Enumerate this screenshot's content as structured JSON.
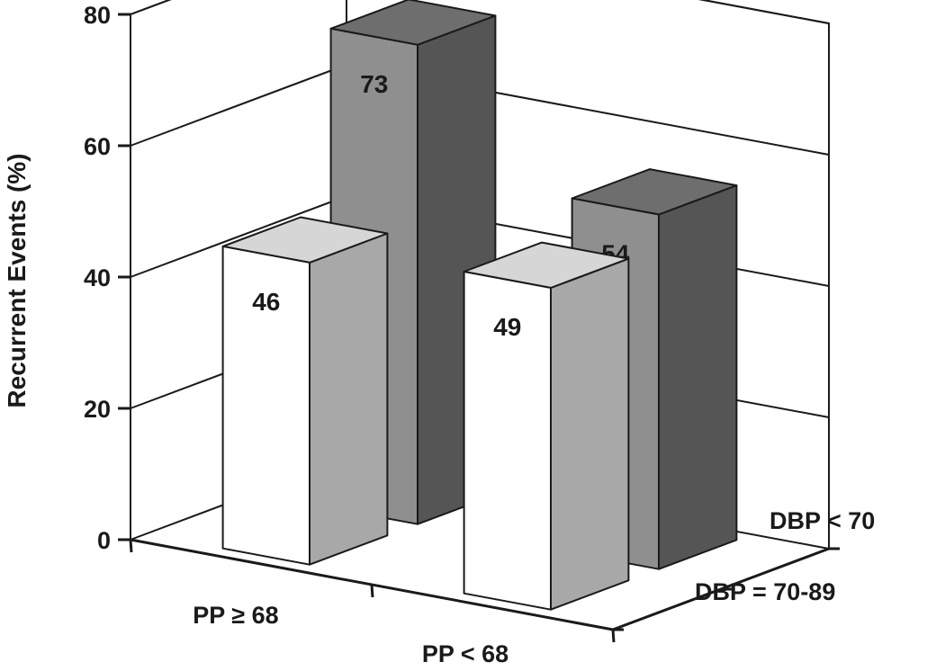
{
  "chart_data": {
    "type": "bar",
    "title": "",
    "ylabel": "Recurrent Events (%)",
    "ylim": [
      0,
      80
    ],
    "yticks": [
      0,
      20,
      40,
      60,
      80
    ],
    "x_categories": [
      "PP ≥ 68",
      "PP < 68"
    ],
    "depth_categories": [
      "DBP = 70-89",
      "DBP < 70"
    ],
    "series": [
      {
        "depth_category": "DBP = 70-89",
        "values": [
          46,
          49
        ],
        "color": "#ffffff"
      },
      {
        "depth_category": "DBP < 70",
        "values": [
          73,
          54
        ],
        "color": "#8f8f8f"
      }
    ],
    "grid": true,
    "colors": {
      "front_face_light": "#ffffff",
      "side_face_light": "#a8a8a8",
      "front_face_dark": "#8f8f8f",
      "side_face_dark": "#555555",
      "top_face_light": "#d6d6d6",
      "top_face_dark": "#6e6e6e"
    }
  }
}
